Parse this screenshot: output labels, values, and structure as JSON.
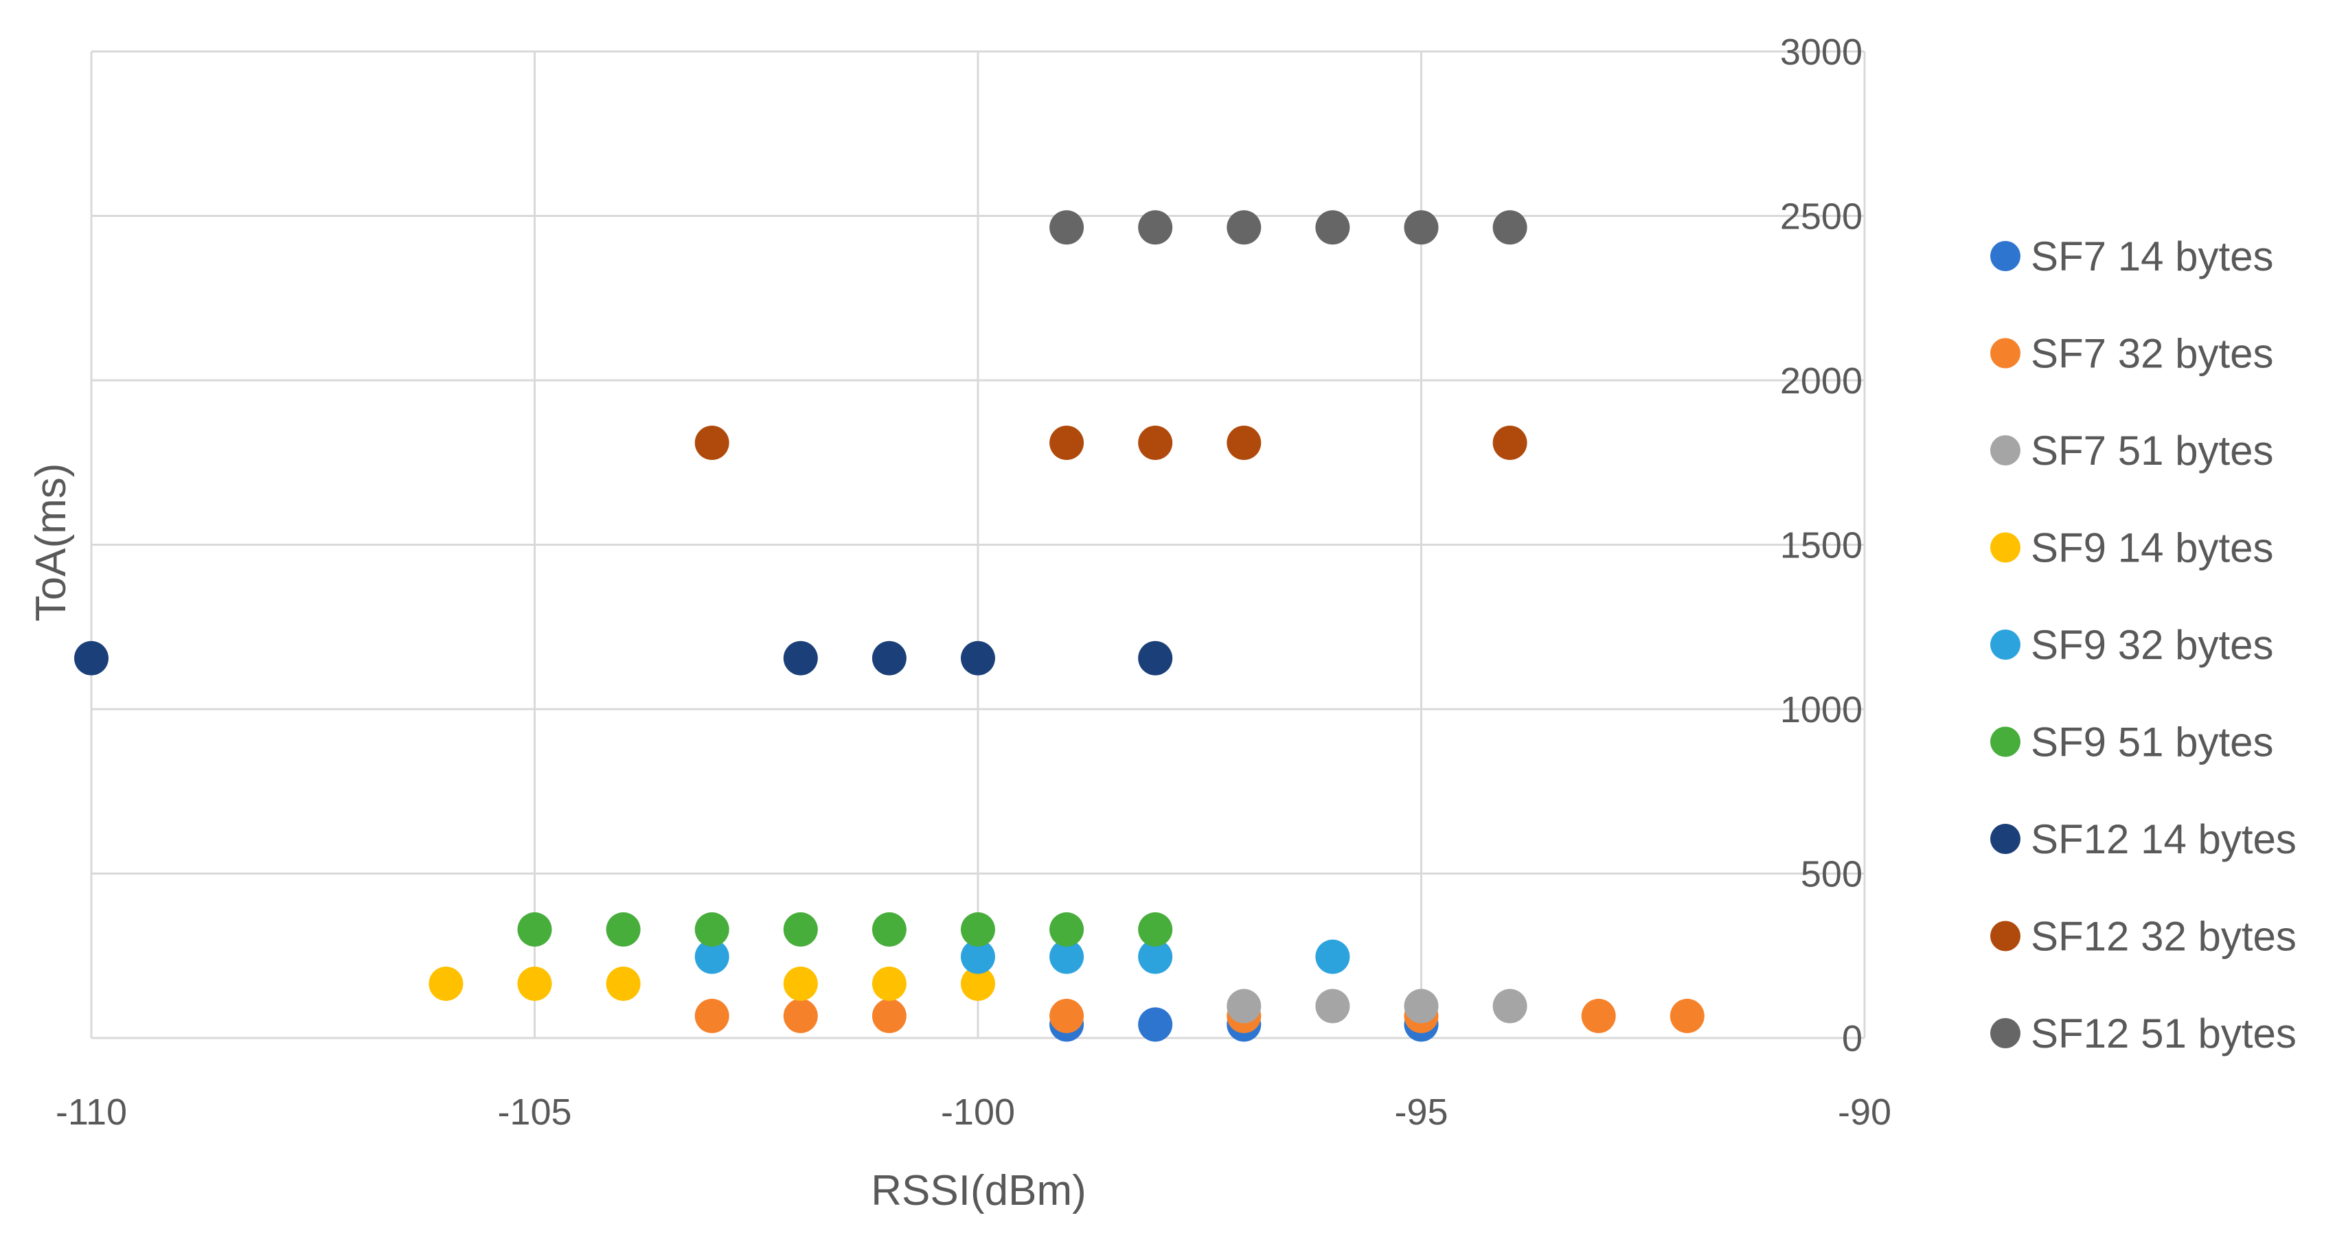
{
  "chart_data": {
    "type": "scatter",
    "title": "",
    "xlabel": "RSSI(dBm)",
    "ylabel": "ToA(ms)",
    "xlim": [
      -110,
      -90
    ],
    "ylim": [
      0,
      3000
    ],
    "x_ticks": [
      -110,
      -105,
      -100,
      -95,
      -90
    ],
    "y_ticks": [
      0,
      500,
      1000,
      1500,
      2000,
      2500,
      3000
    ],
    "y_axis_position": "right",
    "grid": true,
    "legend_position": "right",
    "series": [
      {
        "name": "SF7 14 bytes",
        "color": "#2E75D0",
        "points": [
          [
            -99,
            41
          ],
          [
            -98,
            41
          ],
          [
            -97,
            41
          ],
          [
            -95,
            41
          ]
        ]
      },
      {
        "name": "SF7 32 bytes",
        "color": "#F5822B",
        "points": [
          [
            -103,
            67
          ],
          [
            -102,
            67
          ],
          [
            -101,
            67
          ],
          [
            -99,
            67
          ],
          [
            -97,
            67
          ],
          [
            -95,
            67
          ],
          [
            -93,
            67
          ],
          [
            -92,
            67
          ]
        ]
      },
      {
        "name": "SF7 51 bytes",
        "color": "#A5A5A5",
        "points": [
          [
            -97,
            97
          ],
          [
            -96,
            97
          ],
          [
            -95,
            97
          ],
          [
            -94,
            97
          ]
        ]
      },
      {
        "name": "SF9 14 bytes",
        "color": "#FFC000",
        "points": [
          [
            -106,
            165
          ],
          [
            -105,
            165
          ],
          [
            -104,
            165
          ],
          [
            -102,
            165
          ],
          [
            -101,
            165
          ],
          [
            -100,
            165
          ]
        ]
      },
      {
        "name": "SF9 32 bytes",
        "color": "#2CA3DD",
        "points": [
          [
            -103,
            247
          ],
          [
            -100,
            247
          ],
          [
            -99,
            247
          ],
          [
            -98,
            247
          ],
          [
            -96,
            247
          ]
        ]
      },
      {
        "name": "SF9 51 bytes",
        "color": "#47AD3B",
        "points": [
          [
            -105,
            330
          ],
          [
            -104,
            330
          ],
          [
            -103,
            330
          ],
          [
            -102,
            330
          ],
          [
            -101,
            330
          ],
          [
            -100,
            330
          ],
          [
            -99,
            330
          ],
          [
            -98,
            330
          ]
        ]
      },
      {
        "name": "SF12 14 bytes",
        "color": "#1B3F78",
        "points": [
          [
            -110,
            1155
          ],
          [
            -102,
            1155
          ],
          [
            -101,
            1155
          ],
          [
            -100,
            1155
          ],
          [
            -98,
            1155
          ]
        ]
      },
      {
        "name": "SF12 32 bytes",
        "color": "#B04A0C",
        "points": [
          [
            -103,
            1810
          ],
          [
            -99,
            1810
          ],
          [
            -98,
            1810
          ],
          [
            -97,
            1810
          ],
          [
            -94,
            1810
          ]
        ]
      },
      {
        "name": "SF12 51 bytes",
        "color": "#666666",
        "points": [
          [
            -99,
            2465
          ],
          [
            -98,
            2465
          ],
          [
            -97,
            2465
          ],
          [
            -96,
            2465
          ],
          [
            -95,
            2465
          ],
          [
            -94,
            2465
          ]
        ]
      }
    ]
  }
}
